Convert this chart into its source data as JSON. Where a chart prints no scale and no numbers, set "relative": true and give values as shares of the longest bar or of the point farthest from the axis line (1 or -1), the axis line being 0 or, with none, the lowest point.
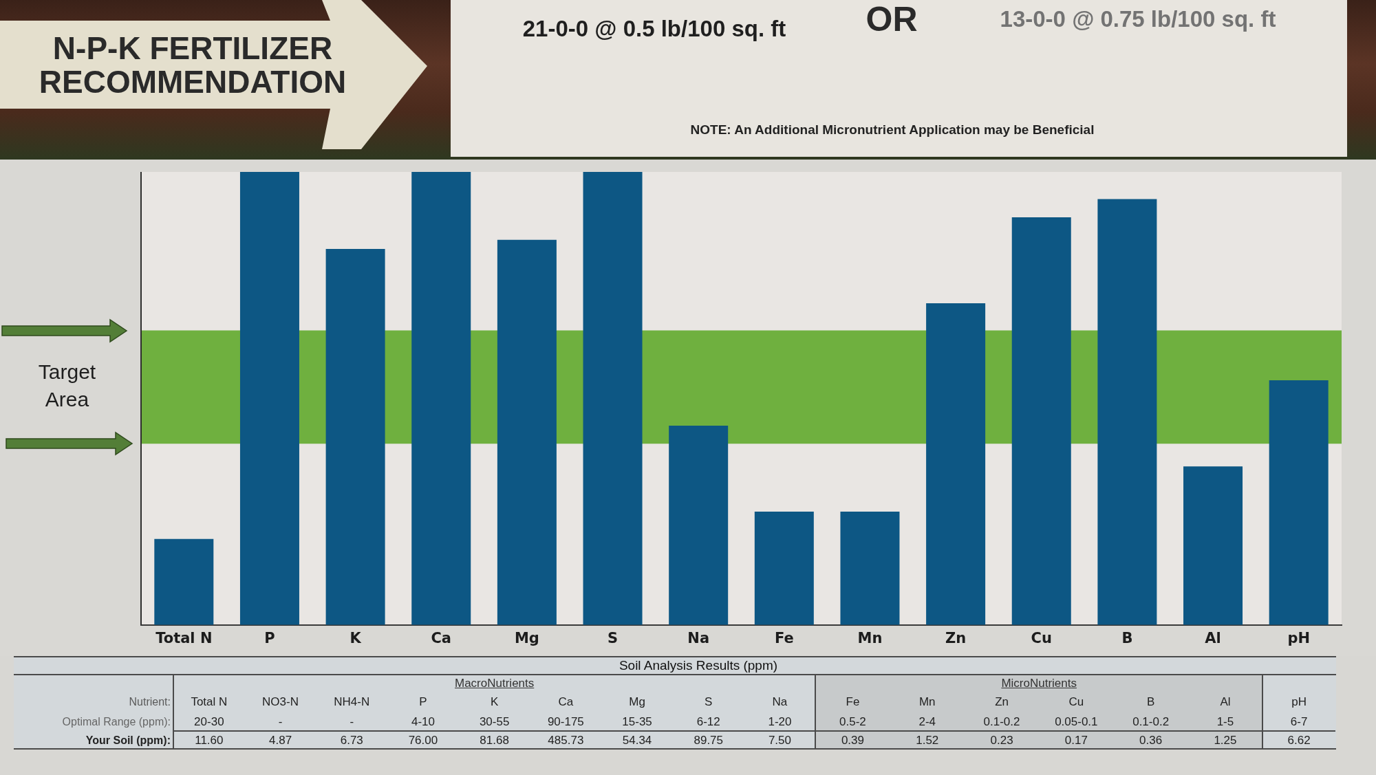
{
  "chart_data": [
    {
      "type": "bar",
      "title": "N-P-K FERTILIZER RECOMMENDATION",
      "categories": [
        "Total N",
        "P",
        "K",
        "Ca",
        "Mg",
        "S",
        "Na",
        "Fe",
        "Mn",
        "Zn",
        "Cu",
        "B",
        "Al",
        "pH"
      ],
      "values": [
        0.19,
        1,
        0.83,
        1,
        0.85,
        1,
        0.44,
        0.25,
        0.25,
        0.71,
        0.9,
        0.94,
        0.35,
        0.54
      ],
      "color": "#0d5784",
      "relative": true,
      "bands": [
        {
          "axis": "y",
          "from": 0.4,
          "to": 0.65,
          "label": "Target Area",
          "color": "#6fb03f"
        }
      ],
      "annotations": [
        "21-0-0 @ 0.5 lb/100 sq. ft",
        "OR",
        "13-0-0 @ 0.75 lb/100 sq. ft",
        "NOTE: An Additional Micronutrient Application may be Beneficial"
      ]
    },
    {
      "type": "other",
      "title": "Soil Analysis Results (ppm)",
      "categories": [
        "Total N",
        "NO3-N",
        "NH4-N",
        "P",
        "K",
        "Ca",
        "Mg",
        "S",
        "Na",
        "Fe",
        "Mn",
        "Zn",
        "Cu",
        "B",
        "Al",
        "pH"
      ],
      "series": [
        {
          "name": "Optimal Range (ppm):",
          "values": [
            null,
            null,
            null,
            null,
            null,
            null,
            null,
            null,
            null,
            null,
            null,
            null,
            null,
            null,
            null,
            null
          ],
          "value_labels": [
            "20-30",
            "-",
            "-",
            "4-10",
            "30-55",
            "90-175",
            "15-35",
            "6-12",
            "1-20",
            "0.5-2",
            "2-4",
            "0.1-0.2",
            "0.05-0.1",
            "0.1-0.2",
            "1-5",
            "6-7"
          ]
        },
        {
          "name": "Your Soil (ppm):",
          "color": "#222222",
          "values": [
            11.6,
            4.87,
            6.73,
            76,
            81.68,
            485.73,
            54.34,
            89.75,
            7.5,
            0.39,
            1.52,
            0.23,
            0.17,
            0.36,
            1.25,
            6.62
          ],
          "value_labels": [
            "11.60",
            "4.87",
            "6.73",
            "76.00",
            "81.68",
            "485.73",
            "54.34",
            "89.75",
            "7.50",
            "0.39",
            "1.52",
            "0.23",
            "0.17",
            "0.36",
            "1.25",
            "6.62"
          ]
        }
      ],
      "annotations": [
        "Nutrient:",
        "MacroNutrients",
        "MicroNutrients"
      ]
    }
  ]
}
